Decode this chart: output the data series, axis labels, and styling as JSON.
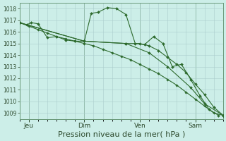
{
  "background_color": "#cceee8",
  "plot_bg_color": "#cceee8",
  "grid_color": "#aacccc",
  "line_color": "#2d6a2d",
  "ylim": [
    1008.5,
    1018.5
  ],
  "yticks": [
    1009,
    1010,
    1011,
    1012,
    1013,
    1014,
    1015,
    1016,
    1017,
    1018
  ],
  "xlabel": "Pression niveau de la mer( hPa )",
  "xlabel_fontsize": 8,
  "xtick_labels": [
    "Jeu",
    "Dim",
    "Ven",
    "Sam"
  ],
  "xtick_positions": [
    8,
    56,
    104,
    152
  ],
  "series": [
    {
      "x": [
        0,
        6,
        10,
        16,
        24,
        32,
        40,
        48,
        56,
        62,
        68,
        76,
        84,
        92,
        100,
        108,
        116,
        124,
        132,
        140,
        148,
        156,
        164,
        172
      ],
      "y": [
        1016.8,
        1016.6,
        1016.8,
        1016.7,
        1015.5,
        1015.6,
        1015.3,
        1015.2,
        1015.2,
        1017.6,
        1017.7,
        1018.1,
        1018.0,
        1017.5,
        1015.0,
        1014.9,
        1015.6,
        1015.0,
        1013.0,
        1013.2,
        1011.9,
        1010.5,
        1009.3,
        1008.8
      ]
    },
    {
      "x": [
        0,
        8,
        16,
        24,
        32,
        40,
        48,
        56,
        64,
        72,
        80,
        88,
        96,
        104,
        112,
        120,
        128,
        136,
        144,
        152,
        160,
        168,
        176
      ],
      "y": [
        1016.8,
        1016.5,
        1016.2,
        1015.9,
        1015.6,
        1015.4,
        1015.2,
        1015.0,
        1014.8,
        1014.5,
        1014.2,
        1013.9,
        1013.6,
        1013.2,
        1012.8,
        1012.4,
        1011.9,
        1011.4,
        1010.8,
        1010.2,
        1009.6,
        1009.0,
        1008.8
      ]
    },
    {
      "x": [
        0,
        56,
        92,
        104,
        112,
        120,
        128,
        136,
        144,
        152,
        160,
        168,
        176
      ],
      "y": [
        1016.8,
        1015.2,
        1015.0,
        1015.0,
        1014.8,
        1014.4,
        1013.8,
        1013.2,
        1012.5,
        1011.5,
        1010.6,
        1009.5,
        1008.8
      ]
    },
    {
      "x": [
        0,
        56,
        92,
        112,
        128,
        148,
        160,
        176
      ],
      "y": [
        1016.8,
        1015.2,
        1015.0,
        1014.2,
        1013.0,
        1011.2,
        1009.8,
        1008.8
      ]
    }
  ]
}
